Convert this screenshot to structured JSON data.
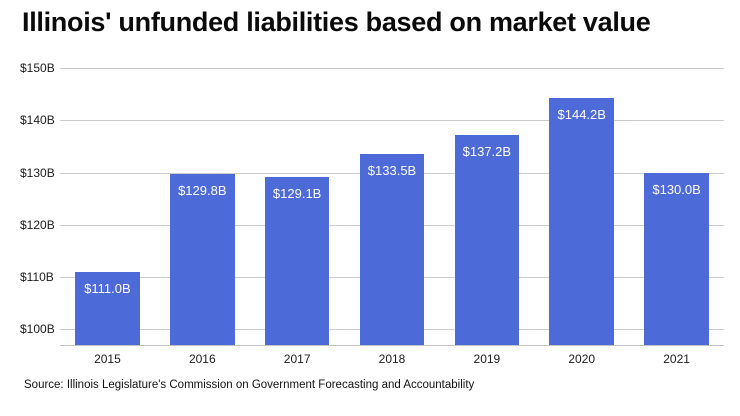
{
  "title": "Illinois' unfunded liabilities based on market value",
  "source": "Source: Illinois Legislature's Commission on Government Forecasting and Accountability",
  "colors": {
    "bar": "#4d6ad9",
    "grid": "#cccccc",
    "bar_label_text": "#ffffff"
  },
  "chart_data": {
    "type": "bar",
    "title": "Illinois' unfunded liabilities based on market value",
    "categories": [
      "2015",
      "2016",
      "2017",
      "2018",
      "2019",
      "2020",
      "2021"
    ],
    "values": [
      111.0,
      129.8,
      129.1,
      133.5,
      137.2,
      144.2,
      130.0
    ],
    "value_labels": [
      "$111.0B",
      "$129.8B",
      "$129.1B",
      "$133.5B",
      "$137.2B",
      "$144.2B",
      "$130.0B"
    ],
    "xlabel": "",
    "ylabel": "",
    "ylim": [
      97,
      150
    ],
    "yticks": [
      100,
      110,
      120,
      130,
      140,
      150
    ],
    "ytick_labels": [
      "$100B",
      "$110B",
      "$120B",
      "$130B",
      "$140B",
      "$150B"
    ],
    "grid": true,
    "legend": "none",
    "bar_color": "#4d6ad9"
  }
}
